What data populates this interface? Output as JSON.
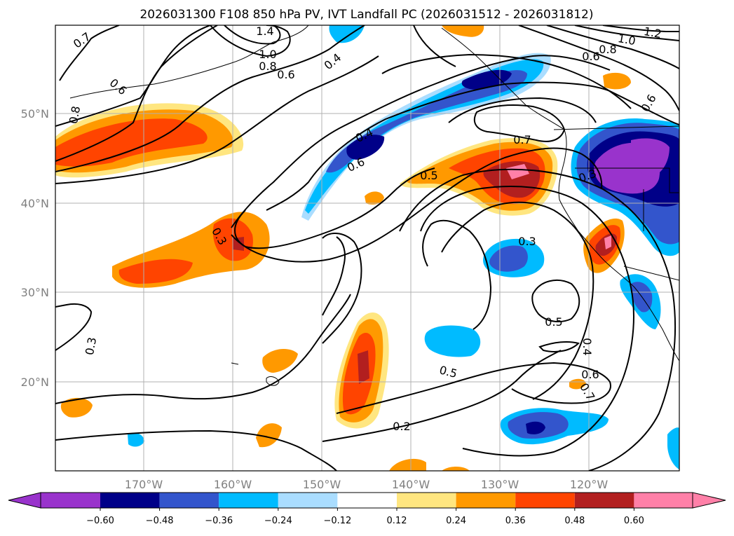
{
  "title": "2026031300 F108 850 hPa PV, IVT Landfall PC (2026031512 - 2026031812)",
  "lat_ticks": [
    {
      "label": "50°N",
      "value": 50
    },
    {
      "label": "40°N",
      "value": 40
    },
    {
      "label": "30°N",
      "value": 30
    },
    {
      "label": "20°N",
      "value": 20
    }
  ],
  "lon_ticks": [
    {
      "label": "170°W",
      "value": -170
    },
    {
      "label": "160°W",
      "value": -160
    },
    {
      "label": "150°W",
      "value": -150
    },
    {
      "label": "140°W",
      "value": -140
    },
    {
      "label": "130°W",
      "value": -130
    },
    {
      "label": "120°W",
      "value": -120
    }
  ],
  "colorbar": {
    "ticks": [
      "−0.60",
      "−0.48",
      "−0.36",
      "−0.24",
      "−0.12",
      "0.12",
      "0.24",
      "0.36",
      "0.48",
      "0.60"
    ],
    "colors": [
      "#9933cc",
      "#000088",
      "#3355cc",
      "#00bbff",
      "#aaddff",
      "#ffffff",
      "#ffe680",
      "#ff9900",
      "#ff4400",
      "#b21f1f",
      "#ff80a8"
    ]
  },
  "contour_labels": [
    "0.7",
    "0.6",
    "0.8",
    "1.4",
    "1.0",
    "0.8",
    "0.6",
    "0.4",
    "1.2",
    "1.0",
    "0.8",
    "0.6",
    "0.6",
    "0.4",
    "0.6",
    "0.7",
    "0.5",
    "0.3",
    "0.3",
    "0.3",
    "0.3",
    "0.5",
    "0.4",
    "0.6",
    "0.5",
    "0.2",
    "0.7"
  ]
}
